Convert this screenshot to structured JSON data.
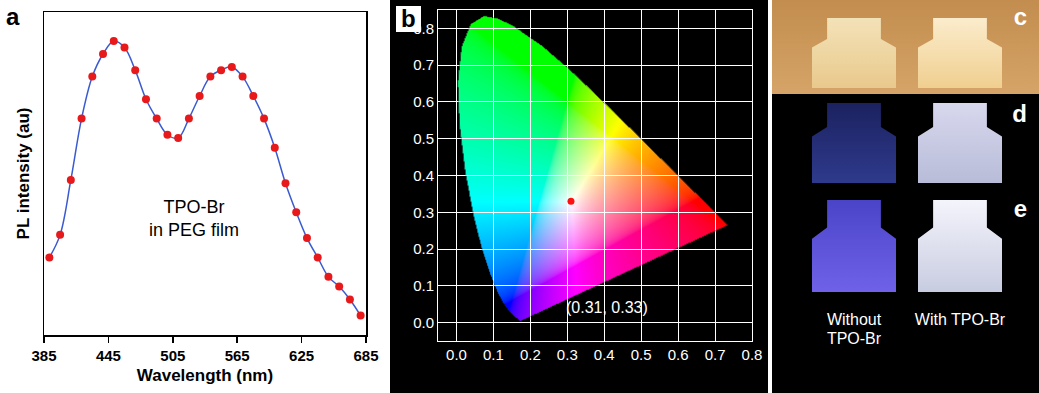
{
  "chart_data": [
    {
      "panel_label": "a",
      "type": "line",
      "color": "#3a5bd0",
      "marker": "circle",
      "x_label": "Wavelength (nm)",
      "y_label": "PL intensity (au)",
      "annotation": [
        "TPO-Br",
        "in PEG film"
      ],
      "x": [
        390,
        400,
        410,
        420,
        430,
        440,
        450,
        460,
        470,
        480,
        490,
        500,
        510,
        520,
        530,
        540,
        550,
        560,
        570,
        580,
        590,
        600,
        610,
        620,
        630,
        640,
        650,
        660,
        670,
        680
      ],
      "values": [
        0.24,
        0.31,
        0.48,
        0.67,
        0.8,
        0.87,
        0.91,
        0.89,
        0.82,
        0.73,
        0.67,
        0.62,
        0.61,
        0.67,
        0.74,
        0.8,
        0.82,
        0.83,
        0.8,
        0.74,
        0.67,
        0.58,
        0.47,
        0.38,
        0.3,
        0.24,
        0.18,
        0.15,
        0.11,
        0.06
      ],
      "xlim": [
        385,
        685
      ],
      "xticks": [
        385,
        445,
        505,
        565,
        625,
        685
      ],
      "ylim": [
        0,
        1
      ],
      "tick_labels": "x",
      "grid": false
    },
    {
      "panel_label": "b",
      "type": "scatter",
      "color": "#ff1010",
      "marker": "circle",
      "annotation": "(0.31, 0.33)",
      "x": [
        0.31
      ],
      "values": [
        0.33
      ],
      "spectral_locus": {
        "x": [
          0.1741,
          0.1714,
          0.1644,
          0.1566,
          0.144,
          0.1241,
          0.1096,
          0.0913,
          0.0687,
          0.0454,
          0.0235,
          0.0082,
          0.0039,
          0.0139,
          0.0389,
          0.0743,
          0.1142,
          0.1547,
          0.2296,
          0.3016,
          0.3731,
          0.4441,
          0.5125,
          0.5752,
          0.627,
          0.6915,
          0.719,
          0.7347,
          0.1741
        ],
        "y": [
          0.005,
          0.0051,
          0.0109,
          0.0177,
          0.0297,
          0.0578,
          0.0868,
          0.1327,
          0.2007,
          0.295,
          0.4127,
          0.5384,
          0.6548,
          0.7502,
          0.812,
          0.8338,
          0.8262,
          0.8059,
          0.7543,
          0.6923,
          0.6245,
          0.5547,
          0.4866,
          0.4242,
          0.3725,
          0.3083,
          0.2809,
          0.2653,
          0.005
        ]
      },
      "xlim": [
        -0.05,
        0.8
      ],
      "xticks": [
        {
          "value": 0,
          "label": "0.0"
        },
        0.1,
        0.2,
        0.3,
        0.4,
        0.5,
        0.6,
        0.7,
        0.8
      ],
      "ylim": [
        -0.05,
        0.85
      ],
      "yticks": [
        {
          "value": 0,
          "label": "0.0"
        },
        0.1,
        0.2,
        0.3,
        0.4,
        0.5,
        0.6,
        0.7,
        0.8
      ],
      "grid": true
    }
  ],
  "photos": {
    "panel_labels": [
      "c",
      "d",
      "e"
    ],
    "captions": [
      "Without TPO-Br",
      "With TPO-Br"
    ]
  }
}
